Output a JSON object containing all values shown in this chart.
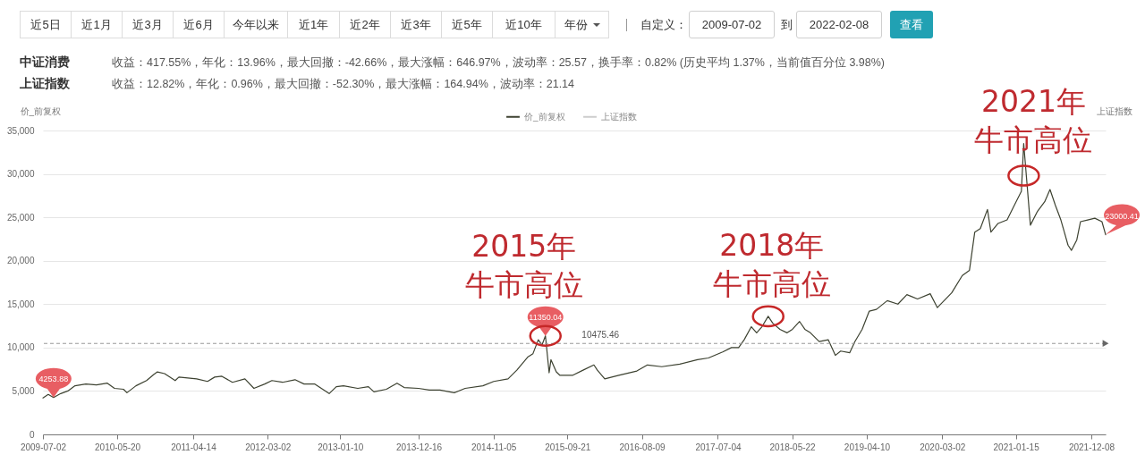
{
  "chart_data": {
    "type": "line",
    "annotations": [
      "近5日",
      "近1月",
      "近3月",
      "近6月",
      "今年以来",
      "近1年",
      "近2年",
      "近3年",
      "近5年",
      "近10年",
      "年份",
      "自定义：",
      "2009-07-02",
      "到",
      "2022-02-08",
      "查看",
      "中证消费",
      "收益：417.55%，年化：13.96%，最大回撤：-42.66%，最大涨幅：646.97%，波动率：25.57，换手率：0.82% (历史平均 1.37%，当前值百分位 3.98%)",
      "上证指数",
      "收益：12.82%，年化：0.96%，最大回撤：-52.30%，最大涨幅：164.94%，波动率：21.14",
      {
        "text": "4253.88",
        "x": "2009-08-17",
        "y": 4253.88
      },
      {
        "text": "11350.04",
        "x": "2015-06-18",
        "y": 11350.04
      },
      {
        "text": "23000.41",
        "x": "2022-02-08",
        "y": 23000.41
      },
      {
        "text": "2015年牛市高位",
        "x": "2015-06-18",
        "y": 11350.04
      },
      {
        "text": "2018年牛市高位",
        "x": "2018-02-07",
        "y": 13600
      },
      {
        "text": "2021年牛市高位",
        "x": "2021-02-18",
        "y": 29800
      }
    ],
    "ylabel": "价_前复权",
    "y2label": "上证指数",
    "x": [
      "2009-07-02",
      "2009-07-25",
      "2009-08-17",
      "2009-09-17",
      "2009-10-18",
      "2009-11-18",
      "2010-01-04",
      "2010-02-19",
      "2010-04-07",
      "2010-05-08",
      "2010-06-16",
      "2010-07-01",
      "2010-08-09",
      "2010-09-24",
      "2010-10-25",
      "2010-11-10",
      "2010-12-11",
      "2011-01-26",
      "2011-02-11",
      "2011-04-29",
      "2011-06-15",
      "2011-07-16",
      "2011-08-16",
      "2011-10-01",
      "2011-11-24",
      "2012-01-02",
      "2012-02-18",
      "2012-03-20",
      "2012-05-05",
      "2012-06-28",
      "2012-08-06",
      "2012-09-22",
      "2012-11-23",
      "2012-12-24",
      "2013-01-24",
      "2013-03-27",
      "2013-05-12",
      "2013-06-05",
      "2013-07-29",
      "2013-09-13",
      "2013-10-14",
      "2013-12-15",
      "2014-01-31",
      "2014-03-18",
      "2014-05-19",
      "2014-07-05",
      "2014-09-20",
      "2014-11-06",
      "2015-01-07",
      "2015-02-14",
      "2015-04-02",
      "2015-04-25",
      "2015-05-18",
      "2015-06-03",
      "2015-06-18",
      "2015-07-04",
      "2015-07-12",
      "2015-08-04",
      "2015-08-20",
      "2015-10-13",
      "2015-11-28",
      "2016-01-14",
      "2016-01-29",
      "2016-03-01",
      "2016-05-01",
      "2016-07-18",
      "2016-09-02",
      "2016-11-03",
      "2017-01-20",
      "2017-04-07",
      "2017-05-24",
      "2017-07-25",
      "2017-09-01",
      "2017-10-02",
      "2017-10-26",
      "2017-11-26",
      "2017-12-19",
      "2018-01-11",
      "2018-02-07",
      "2018-02-27",
      "2018-03-30",
      "2018-04-30",
      "2018-05-23",
      "2018-06-23",
      "2018-07-16",
      "2018-08-09",
      "2018-09-16",
      "2018-10-25",
      "2018-11-25",
      "2018-12-18",
      "2019-01-26",
      "2019-02-18",
      "2019-03-21",
      "2019-04-21",
      "2019-05-22",
      "2019-07-08",
      "2019-08-23",
      "2019-10-01",
      "2019-11-16",
      "2020-01-10",
      "2020-02-10",
      "2020-04-12",
      "2020-05-28",
      "2020-06-28",
      "2020-07-21",
      "2020-08-14",
      "2020-09-14",
      "2020-09-29",
      "2020-10-30",
      "2020-12-08",
      "2021-01-16",
      "2021-02-08",
      "2021-02-18",
      "2021-03-19",
      "2021-04-19",
      "2021-05-20",
      "2021-06-12",
      "2021-07-05",
      "2021-07-29",
      "2021-08-13",
      "2021-08-29",
      "2021-09-13",
      "2021-10-06",
      "2021-10-22",
      "2021-11-22",
      "2021-12-23",
      "2022-01-23",
      "2022-02-08"
    ],
    "series": [
      {
        "name": "价_前复权",
        "color": "#3d4231",
        "values": [
          4200,
          4600,
          4253.88,
          4700,
          5000,
          5600,
          5800,
          5700,
          5900,
          5300,
          5200,
          4800,
          5600,
          6200,
          6900,
          7200,
          7000,
          6200,
          6600,
          6400,
          6100,
          6600,
          6700,
          6000,
          6400,
          5300,
          5800,
          6200,
          6000,
          6300,
          5800,
          5800,
          4700,
          5500,
          5600,
          5300,
          5500,
          4900,
          5200,
          5900,
          5400,
          5300,
          5100,
          5100,
          4800,
          5300,
          5600,
          6100,
          6400,
          7400,
          8900,
          9300,
          10900,
          10300,
          11350.04,
          7100,
          8600,
          7200,
          6800,
          6800,
          7400,
          8000,
          7400,
          6400,
          6800,
          7300,
          8000,
          7800,
          8100,
          8600,
          8800,
          9500,
          10000,
          10000,
          10900,
          12400,
          11700,
          12400,
          13600,
          12800,
          12100,
          11700,
          12100,
          13000,
          12100,
          11700,
          10700,
          10900,
          9100,
          9600,
          9400,
          10700,
          12100,
          14200,
          14400,
          15400,
          15000,
          16100,
          15600,
          16200,
          14600,
          16300,
          18300,
          18900,
          23300,
          23700,
          25900,
          23300,
          24300,
          24700,
          26800,
          28000,
          33500,
          24100,
          25700,
          26800,
          28200,
          26400,
          24700,
          23300,
          21800,
          21200,
          22400,
          24500,
          24700,
          24900,
          24500,
          23000.41
        ]
      },
      {
        "name": "上证指数",
        "color": "#cccccc",
        "values": [
          null,
          null,
          null,
          null,
          null,
          null,
          null,
          null,
          null,
          null,
          null,
          null,
          null,
          null,
          null,
          null,
          null,
          null,
          null,
          null,
          null,
          null,
          null,
          null,
          null,
          null,
          null,
          null,
          null,
          null,
          null,
          null,
          null,
          null,
          null,
          null,
          null,
          null,
          null,
          null,
          null,
          null,
          null,
          null,
          null,
          null,
          null,
          null,
          null,
          null,
          null,
          null,
          null,
          null,
          null,
          null,
          null,
          null,
          null,
          null,
          null,
          null,
          null,
          null,
          null,
          null,
          null,
          null,
          null,
          null,
          null,
          null,
          null,
          null,
          null,
          null,
          null,
          null,
          null,
          null,
          null,
          null,
          null,
          null,
          null,
          null,
          null,
          null,
          null,
          null,
          null,
          null,
          null,
          null,
          null,
          null,
          null,
          null,
          null,
          null,
          null,
          null,
          null,
          null,
          null,
          null,
          null,
          null,
          null,
          null,
          null,
          null,
          null,
          null,
          null,
          null,
          null,
          null,
          null,
          null,
          null,
          null,
          null,
          null,
          null,
          null,
          null,
          null
        ]
      }
    ],
    "xlim": [
      "2009-07-02",
      "2022-02-08"
    ],
    "xticks": [
      "2009-07-02",
      "2010-05-20",
      "2011-04-14",
      "2012-03-02",
      "2013-01-10",
      "2013-12-16",
      "2014-11-05",
      "2015-09-21",
      "2016-08-09",
      "2017-07-04",
      "2018-05-22",
      "2019-04-10",
      "2020-03-02",
      "2021-01-15",
      "2021-12-08"
    ],
    "ylim": [
      0,
      35000
    ],
    "yticks": [
      0,
      {
        "value": 5000,
        "label": "5,000"
      },
      {
        "value": 10000,
        "label": "10,000"
      },
      {
        "value": 15000,
        "label": "15,000"
      },
      {
        "value": 20000,
        "label": "20,000"
      },
      {
        "value": 25000,
        "label": "25,000"
      },
      {
        "value": 30000,
        "label": "30,000"
      },
      {
        "value": 35000,
        "label": "35,000"
      }
    ],
    "ref_lines": [
      {
        "axis": "y",
        "value": 10475.46,
        "label": "10475.46",
        "color": "#999999",
        "line_style": "dashed"
      }
    ],
    "grid": "y",
    "legend": "top"
  }
}
